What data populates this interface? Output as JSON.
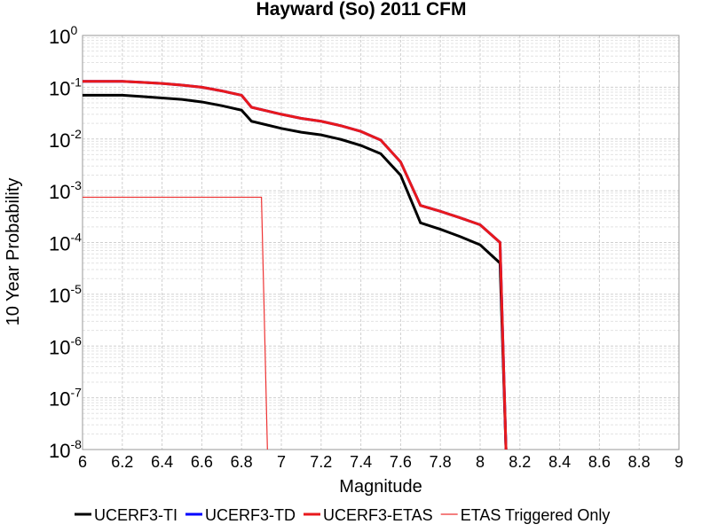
{
  "chart_data": {
    "type": "line",
    "title": "Hayward (So) 2011 CFM",
    "xlabel": "Magnitude",
    "ylabel": "10 Year Probability",
    "xlim": [
      6,
      9
    ],
    "ylim": [
      1e-08,
      1
    ],
    "yscale": "log",
    "grid": true,
    "legend_position": "bottom",
    "x_ticks": [
      6,
      6.2,
      6.4,
      6.6,
      6.8,
      7,
      7.2,
      7.4,
      7.6,
      7.8,
      8,
      8.2,
      8.4,
      8.6,
      8.8,
      9
    ],
    "x_tick_labels": [
      "6",
      "6.2",
      "6.4",
      "6.6",
      "6.8",
      "7",
      "7.2",
      "7.4",
      "7.6",
      "7.8",
      "8",
      "8.2",
      "8.4",
      "8.6",
      "8.8",
      "9"
    ],
    "y_ticks": [
      {
        "value": 1,
        "base": "10",
        "exp": "0"
      },
      {
        "value": 0.1,
        "base": "10",
        "exp": "-1"
      },
      {
        "value": 0.01,
        "base": "10",
        "exp": "-2"
      },
      {
        "value": 0.001,
        "base": "10",
        "exp": "-3"
      },
      {
        "value": 0.0001,
        "base": "10",
        "exp": "-4"
      },
      {
        "value": 1e-05,
        "base": "10",
        "exp": "-5"
      },
      {
        "value": 1e-06,
        "base": "10",
        "exp": "-6"
      },
      {
        "value": 1e-07,
        "base": "10",
        "exp": "-7"
      },
      {
        "value": 1e-08,
        "base": "10",
        "exp": "-8"
      }
    ],
    "series": [
      {
        "name": "UCERF3-TI",
        "color": "#000000",
        "width": 3,
        "x": [
          6.0,
          6.2,
          6.3,
          6.4,
          6.5,
          6.6,
          6.7,
          6.8,
          6.85,
          7.0,
          7.1,
          7.2,
          7.3,
          7.4,
          7.5,
          7.6,
          7.7,
          7.8,
          7.9,
          8.0,
          8.1,
          8.13
        ],
        "y": [
          0.07,
          0.07,
          0.066,
          0.062,
          0.058,
          0.052,
          0.044,
          0.036,
          0.022,
          0.016,
          0.0135,
          0.012,
          0.0098,
          0.0075,
          0.0052,
          0.002,
          0.00024,
          0.00018,
          0.00013,
          9e-05,
          4e-05,
          1e-08
        ]
      },
      {
        "name": "UCERF3-TD",
        "color": "#0000ff",
        "width": 3,
        "x": [
          6.0,
          6.2,
          6.3,
          6.4,
          6.5,
          6.6,
          6.7,
          6.8,
          6.85,
          7.0,
          7.1,
          7.2,
          7.3,
          7.4,
          7.5,
          7.6,
          7.7,
          7.8,
          7.9,
          8.0,
          8.1,
          8.13
        ],
        "y": [
          0.13,
          0.13,
          0.124,
          0.118,
          0.11,
          0.1,
          0.085,
          0.07,
          0.041,
          0.03,
          0.025,
          0.022,
          0.018,
          0.014,
          0.0095,
          0.0036,
          0.00052,
          0.0004,
          0.0003,
          0.00022,
          0.0001,
          1e-08
        ]
      },
      {
        "name": "UCERF3-ETAS",
        "color": "#e8191c",
        "width": 3,
        "x": [
          6.0,
          6.2,
          6.3,
          6.4,
          6.5,
          6.6,
          6.7,
          6.8,
          6.85,
          7.0,
          7.1,
          7.2,
          7.3,
          7.4,
          7.5,
          7.6,
          7.7,
          7.8,
          7.9,
          8.0,
          8.1,
          8.13
        ],
        "y": [
          0.13,
          0.13,
          0.124,
          0.118,
          0.11,
          0.1,
          0.085,
          0.07,
          0.041,
          0.03,
          0.025,
          0.022,
          0.018,
          0.014,
          0.0095,
          0.0036,
          0.00052,
          0.0004,
          0.0003,
          0.00022,
          0.0001,
          1e-08
        ]
      },
      {
        "name": "ETAS Triggered Only",
        "color": "#ee3333",
        "width": 1.2,
        "x": [
          6.0,
          6.9,
          6.93
        ],
        "y": [
          0.00075,
          0.00075,
          1e-08
        ]
      }
    ]
  }
}
